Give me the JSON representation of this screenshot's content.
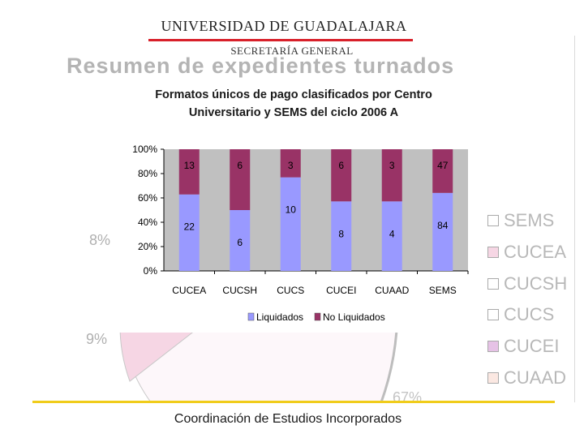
{
  "header": {
    "university": "UNIVERSIDAD DE GUADALAJARA",
    "office": "SECRETARÍA GENERAL",
    "background_title": "Resumen de expedientes turnados"
  },
  "background_pie": {
    "labels": [
      "8%",
      "9%",
      "67%"
    ],
    "legend": [
      {
        "label": "SEMS",
        "color": "#ffffff"
      },
      {
        "label": "CUCEA",
        "color": "#f6d6e4"
      },
      {
        "label": "CUCSH",
        "color": "#ffffff"
      },
      {
        "label": "CUCS",
        "color": "#ffffff"
      },
      {
        "label": "CUCEI",
        "color": "#e6c2e6"
      },
      {
        "label": "CUAAD",
        "color": "#fbe8e2"
      }
    ]
  },
  "footer": "Coordinación de Estudios Incorporados",
  "chart_data": {
    "type": "bar",
    "stacked": "percent",
    "title_lines": [
      "Formatos únicos de pago clasificados por Centro",
      "Universitario y SEMS del ciclo 2006 A"
    ],
    "categories": [
      "CUCEA",
      "CUCSH",
      "CUCS",
      "CUCEI",
      "CUAAD",
      "SEMS"
    ],
    "series": [
      {
        "name": "Liquidados",
        "values": [
          22,
          6,
          10,
          8,
          4,
          84
        ],
        "color": "#9999ff"
      },
      {
        "name": "No Liquidados",
        "values": [
          13,
          6,
          3,
          6,
          3,
          47
        ],
        "color": "#993366"
      }
    ],
    "yticks": [
      "0%",
      "20%",
      "40%",
      "60%",
      "80%",
      "100%"
    ],
    "ylim": [
      0,
      100
    ],
    "grid": false,
    "legend_position": "bottom",
    "plot_background": "#c0c0c0"
  }
}
